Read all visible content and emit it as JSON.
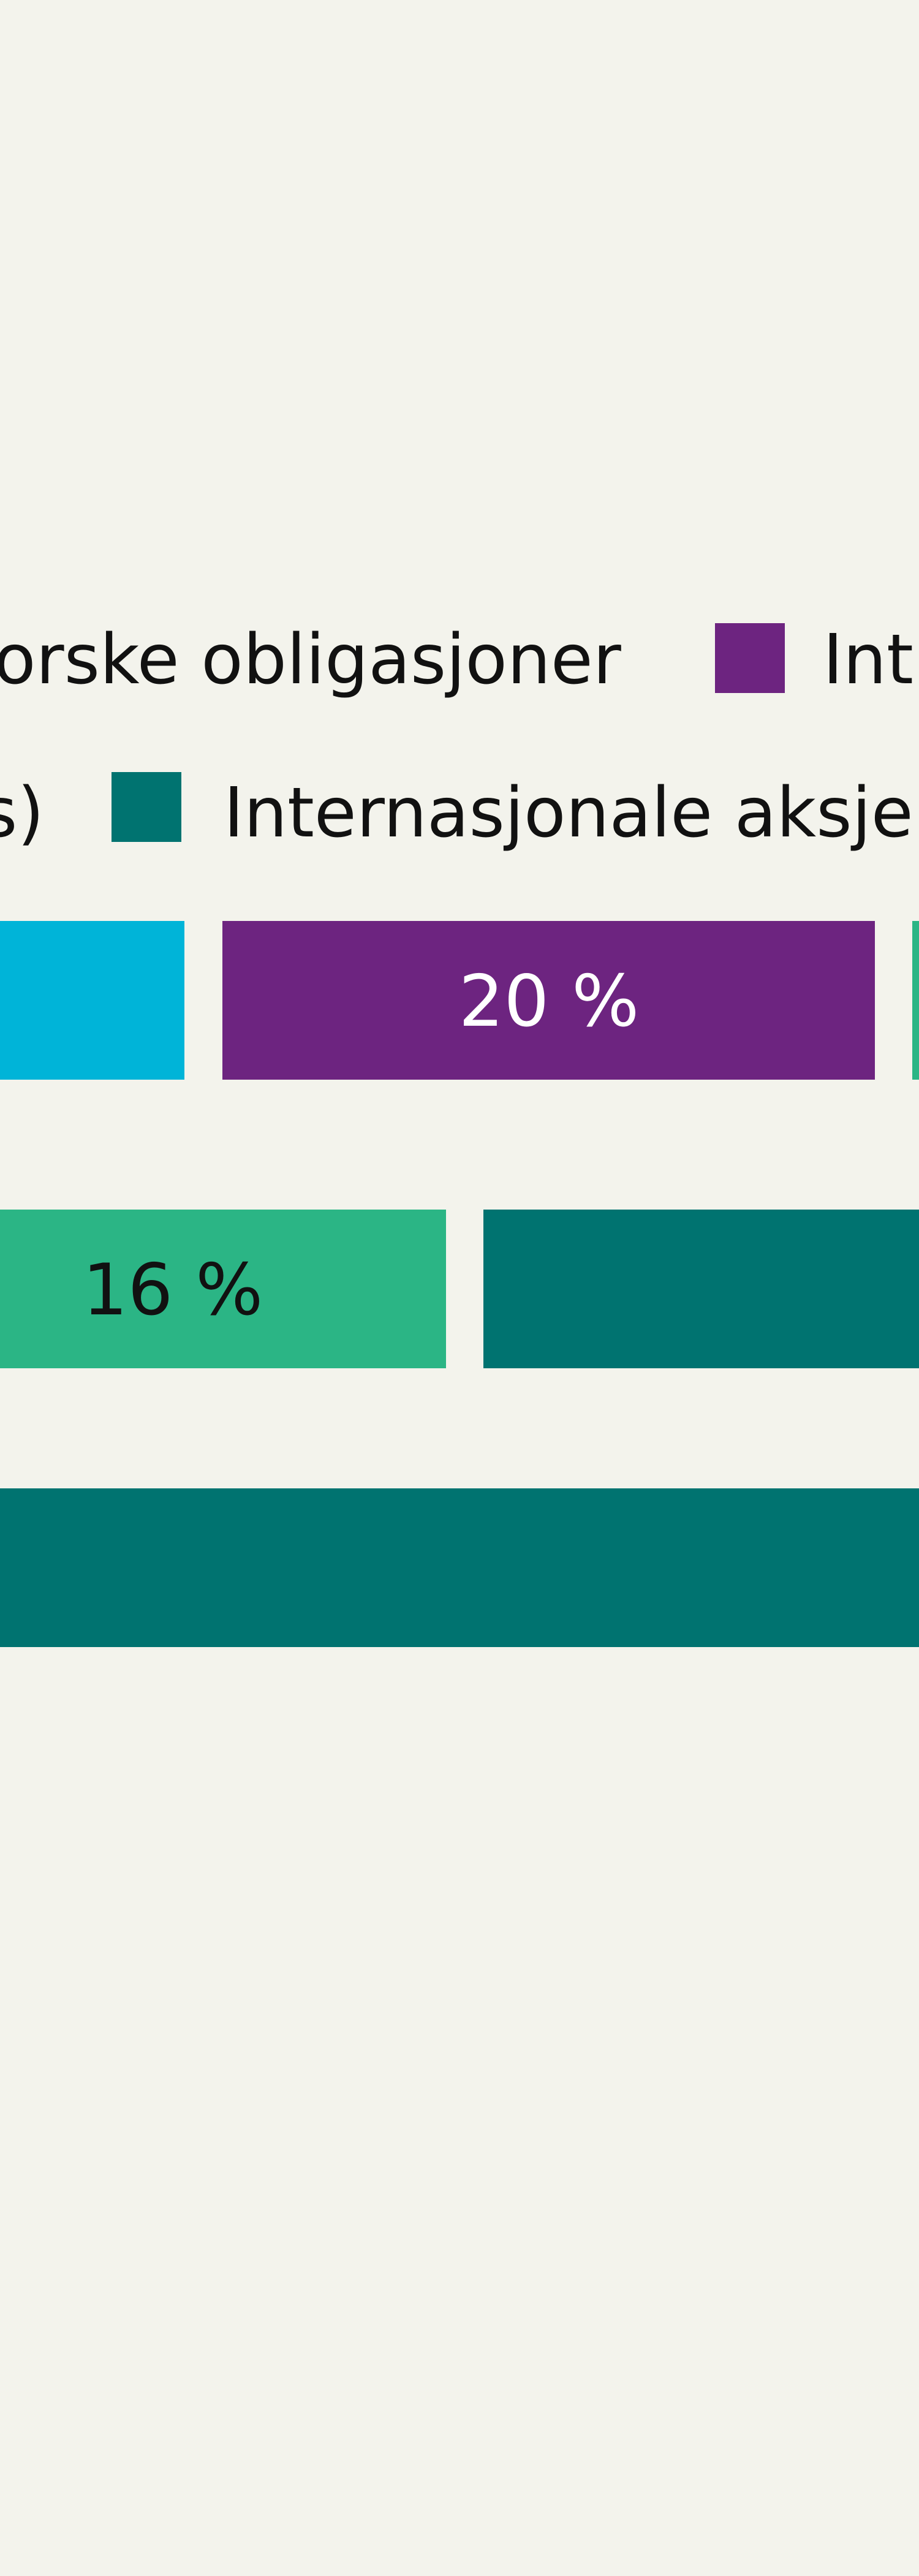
{
  "chart_data": {
    "type": "bar",
    "orientation": "horizontal-stacked",
    "title": "",
    "xlabel": "",
    "ylabel": "",
    "grid": false,
    "legend_position": "top",
    "legend": [
      {
        "label": "orske obligasjoner",
        "color": "#00b4d8",
        "visible_marker": false
      },
      {
        "label": "Int",
        "color": "#6d2480",
        "visible_marker": true
      },
      {
        "label": "s)",
        "color": "#2bb585",
        "visible_marker": false
      },
      {
        "label": "Internasjonale aksje",
        "color": "#007370",
        "visible_marker": true
      }
    ],
    "rows": [
      {
        "segments": [
          {
            "color": "#00b4d8",
            "label": ""
          },
          {
            "color": "#6d2480",
            "label": "20 %",
            "label_color": "#ffffff"
          },
          {
            "color": "#2bb585",
            "label": ""
          }
        ]
      },
      {
        "segments": [
          {
            "color": "#2bb585",
            "label": "16 %",
            "label_color": "#111111"
          },
          {
            "color": "#007370",
            "label": ""
          }
        ]
      },
      {
        "segments": [
          {
            "color": "#007370",
            "label": ""
          }
        ]
      }
    ]
  }
}
